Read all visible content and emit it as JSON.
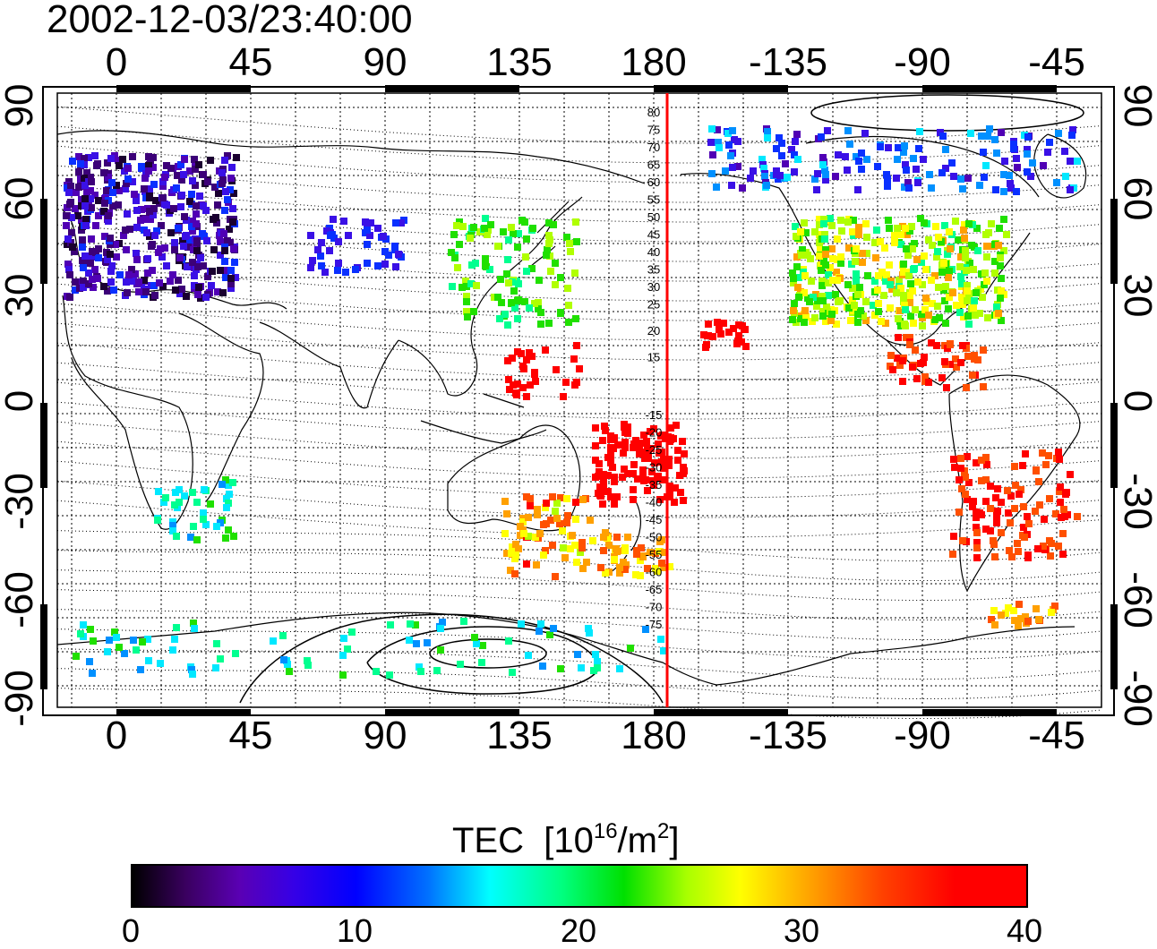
{
  "title": "2002-12-03/23:40:00",
  "map": {
    "top_ticks": [
      "0",
      "45",
      "90",
      "135",
      "180",
      "-135",
      "-90",
      "-45"
    ],
    "bottom_ticks": [
      "0",
      "45",
      "90",
      "135",
      "180",
      "-135",
      "-90",
      "-45"
    ],
    "left_ticks": [
      "90",
      "60",
      "30",
      "0",
      "-30",
      "-60",
      "-90"
    ],
    "right_ticks": [
      "90",
      "60",
      "30",
      "0",
      "-30",
      "-60",
      "-90"
    ],
    "magnetic_latitude_labels_north": [
      "80",
      "75",
      "70",
      "65",
      "60",
      "55",
      "50",
      "45",
      "40",
      "35",
      "30",
      "25",
      "20",
      "15"
    ],
    "magnetic_latitude_labels_south": [
      "-15",
      "-20",
      "-25",
      "-30",
      "-35",
      "-40",
      "-45",
      "-50",
      "-55",
      "-60",
      "-65",
      "-70",
      "-75"
    ],
    "midnight_meridian_color": "#ff0000"
  },
  "colorbar": {
    "label": "TEC",
    "units_prefix": "[10",
    "units_exp": "16",
    "units_mid": "/m",
    "units_exp2": "2",
    "units_suffix": "]",
    "ticks": [
      "0",
      "10",
      "20",
      "30",
      "40"
    ],
    "min": 0,
    "max": 40
  }
}
